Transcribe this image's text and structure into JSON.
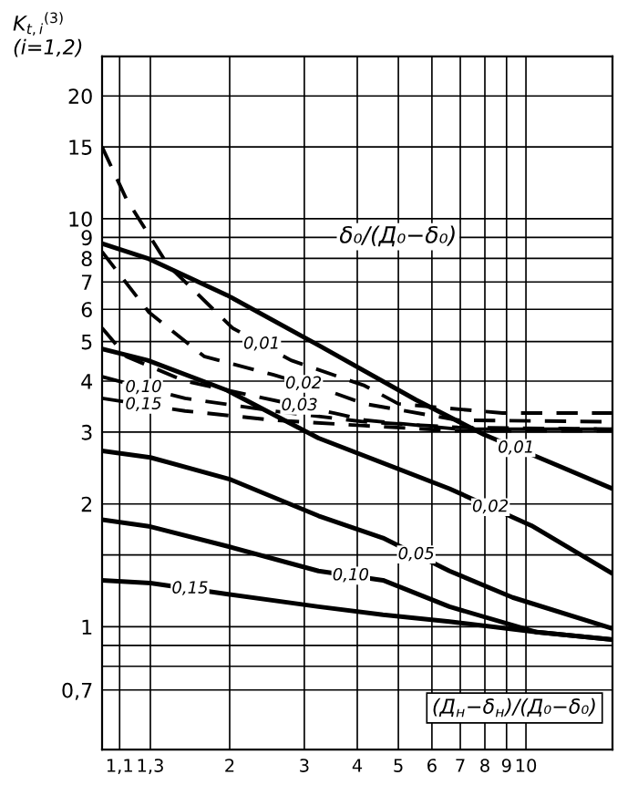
{
  "chart_data": {
    "type": "line",
    "ylabel": "K$_{t,i}$$^{(3)}$\n(i=1,2)",
    "xlabel": "(Д$_{н}$−δ$_{н}$)/(Д₀−δ₀)",
    "log": "xy",
    "grid": true,
    "legend": false,
    "marker": "none",
    "xlim": [
      1.0,
      16
    ],
    "ylim": [
      0.5,
      25
    ],
    "xticks": [
      {
        "value": 1.1,
        "label": "1,1"
      },
      {
        "value": 1.3,
        "label": "1,3"
      },
      2,
      3,
      4,
      5,
      6,
      7,
      8,
      9,
      10
    ],
    "yticks": [
      {
        "value": 0.7,
        "label": "0,7"
      },
      {
        "value": 0.8,
        "label": null
      },
      {
        "value": 0.9,
        "label": null
      },
      1,
      {
        "value": 1.5,
        "label": null
      },
      2,
      3,
      4,
      5,
      6,
      7,
      8,
      9,
      10,
      15,
      20
    ],
    "series": [
      {
        "name": "0,01",
        "color": "#000000",
        "line_style": "solid",
        "x": [
          1.0,
          1.28,
          1.97,
          3.24,
          5.5,
          7.95,
          11.3,
          16
        ],
        "values": [
          8.7,
          8.0,
          6.5,
          4.9,
          3.6,
          2.96,
          2.54,
          2.18
        ]
      },
      {
        "name": "0,02",
        "color": "#000000",
        "line_style": "solid",
        "x": [
          1.0,
          1.28,
          1.97,
          3.24,
          6.6,
          10.3,
          16
        ],
        "values": [
          4.8,
          4.5,
          3.8,
          2.9,
          2.18,
          1.77,
          1.35
        ]
      },
      {
        "name": "0,05",
        "color": "#000000",
        "line_style": "solid",
        "x": [
          1.0,
          1.3,
          2.0,
          3.24,
          4.6,
          6.6,
          9.3,
          16
        ],
        "values": [
          2.7,
          2.6,
          2.3,
          1.87,
          1.65,
          1.37,
          1.18,
          0.99
        ]
      },
      {
        "name": "0,10",
        "color": "#000000",
        "line_style": "solid",
        "x": [
          1.0,
          1.3,
          2.0,
          3.24,
          4.6,
          6.6,
          10.6,
          16
        ],
        "values": [
          1.83,
          1.76,
          1.57,
          1.37,
          1.3,
          1.12,
          0.97,
          0.93
        ]
      },
      {
        "name": "0,15",
        "color": "#000000",
        "line_style": "solid",
        "x": [
          1.0,
          1.3,
          2.0,
          3.24,
          4.6,
          6.6,
          10.6,
          16
        ],
        "values": [
          1.3,
          1.28,
          1.2,
          1.12,
          1.07,
          1.03,
          0.97,
          0.93
        ]
      },
      {
        "name": "0,01",
        "color": "#000000",
        "line_style": "dashed",
        "x": [
          1.0,
          1.14,
          1.43,
          2.03,
          2.79,
          4.16,
          5.0,
          8.8,
          16
        ],
        "values": [
          15,
          11.2,
          7.7,
          5.4,
          4.5,
          3.9,
          3.52,
          3.34,
          3.34
        ]
      },
      {
        "name": "0,02",
        "color": "#000000",
        "line_style": "dashed",
        "x": [
          1.0,
          1.29,
          1.74,
          2.53,
          3.53,
          4.16,
          6.9,
          16
        ],
        "values": [
          8.3,
          5.9,
          4.6,
          4.15,
          3.74,
          3.52,
          3.21,
          3.18
        ]
      },
      {
        "name": "0,03",
        "color": "#000000",
        "line_style": "dashed",
        "x": [
          1.0,
          1.14,
          1.57,
          2.42,
          3.53,
          4.16,
          6.9,
          16
        ],
        "values": [
          5.4,
          4.6,
          4.0,
          3.63,
          3.34,
          3.21,
          3.05,
          3.05
        ]
      },
      {
        "name": "0,10",
        "color": "#000000",
        "line_style": "dashed",
        "x": [
          1.0,
          1.57,
          2.53,
          4.16,
          6.9,
          16
        ],
        "values": [
          4.1,
          3.63,
          3.38,
          3.18,
          3.08,
          3.05
        ]
      },
      {
        "name": "0,15",
        "color": "#000000",
        "line_style": "dashed",
        "x": [
          1.0,
          1.57,
          2.53,
          4.16,
          6.9,
          16
        ],
        "values": [
          3.63,
          3.38,
          3.21,
          3.11,
          3.02,
          3.02
        ]
      }
    ],
    "annotations": [
      "δ₀/(Д₀−δ₀)"
    ]
  }
}
